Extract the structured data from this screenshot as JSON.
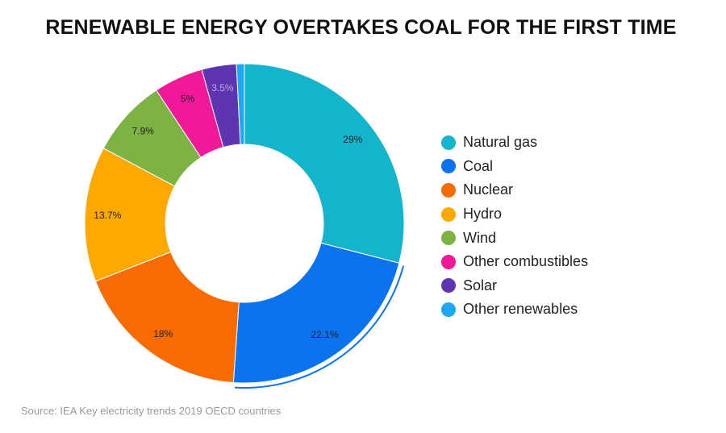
{
  "chart_data": {
    "type": "pie",
    "variant": "donut",
    "title": "RENEWABLE ENERGY OVERTAKES COAL FOR  THE FIRST TIME",
    "source": "Source: IEA Key electricity trends 2019 OECD countries",
    "legend_position": "right",
    "highlighted": "Coal",
    "slices": [
      {
        "name": "Natural gas",
        "value": 29,
        "label": "29%",
        "color": "#14b4cc"
      },
      {
        "name": "Coal",
        "value": 22.1,
        "label": "22.1%",
        "color": "#0b73ee"
      },
      {
        "name": "Nuclear",
        "value": 18,
        "label": "18%",
        "color": "#f76b00"
      },
      {
        "name": "Hydro",
        "value": 13.7,
        "label": "13.7%",
        "color": "#ffa800"
      },
      {
        "name": "Wind",
        "value": 7.9,
        "label": "7.9%",
        "color": "#7cb342"
      },
      {
        "name": "Other combustibles",
        "value": 5,
        "label": "5%",
        "color": "#f0199a"
      },
      {
        "name": "Solar",
        "value": 3.5,
        "label": "3.5%",
        "color": "#5e35b1"
      },
      {
        "name": "Other renewables",
        "value": 0.8,
        "label": "",
        "color": "#1aa9f2"
      }
    ]
  }
}
